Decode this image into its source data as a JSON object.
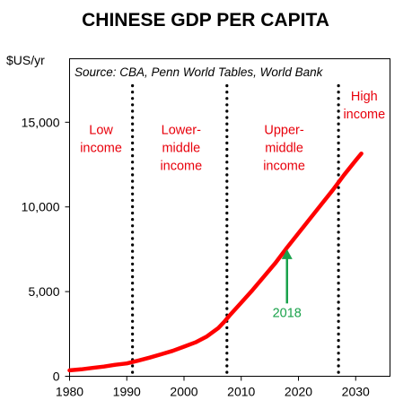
{
  "chart_data": {
    "type": "line",
    "title": "CHINESE GDP PER CAPITA",
    "ylabel": "$US/yr",
    "source": "Source: CBA, Penn World Tables, World Bank",
    "xlim": [
      1980,
      2036
    ],
    "ylim": [
      0,
      18750
    ],
    "grid": false,
    "x_ticks": [
      1980,
      1990,
      2000,
      2010,
      2020,
      2030
    ],
    "x_tick_labels": [
      "1980",
      "1990",
      "2000",
      "2010",
      "2020",
      "2030"
    ],
    "y_ticks": [
      0,
      5000,
      10000,
      15000
    ],
    "y_tick_labels": [
      "0",
      "5,000",
      "10,000",
      "15,000"
    ],
    "series": [
      {
        "color": "#ff0000",
        "x": [
          1980,
          1982,
          1984,
          1986,
          1988,
          1990,
          1992,
          1994,
          1996,
          1998,
          2000,
          2002,
          2004,
          2006,
          2007,
          2008,
          2010,
          2012,
          2014,
          2016,
          2018,
          2020,
          2022,
          2024,
          2026,
          2028,
          2030,
          2031
        ],
        "y": [
          350,
          410,
          490,
          570,
          680,
          760,
          920,
          1100,
          1300,
          1500,
          1750,
          2000,
          2350,
          2850,
          3200,
          3600,
          4350,
          5100,
          5900,
          6700,
          7600,
          8450,
          9300,
          10150,
          11000,
          11900,
          12750,
          13150
        ]
      }
    ],
    "thresholds": [
      {
        "x": 1991
      },
      {
        "x": 2007.5
      },
      {
        "x": 2027
      }
    ],
    "regions": [
      {
        "lines": [
          "Low",
          "income"
        ],
        "x": 1985.5,
        "y": 14300
      },
      {
        "lines": [
          "Lower-",
          "middle",
          "income"
        ],
        "x": 1999.5,
        "y": 14300
      },
      {
        "lines": [
          "Upper-",
          "middle",
          "income"
        ],
        "x": 2017.5,
        "y": 14300
      },
      {
        "lines": [
          "High",
          "income"
        ],
        "x": 2031.5,
        "y": 16300
      }
    ],
    "annotations": [
      {
        "label": "2018",
        "color": "#1aa24b",
        "x": 2018,
        "y_from": 4300,
        "y_to": 7500,
        "label_y": 3500
      }
    ]
  }
}
